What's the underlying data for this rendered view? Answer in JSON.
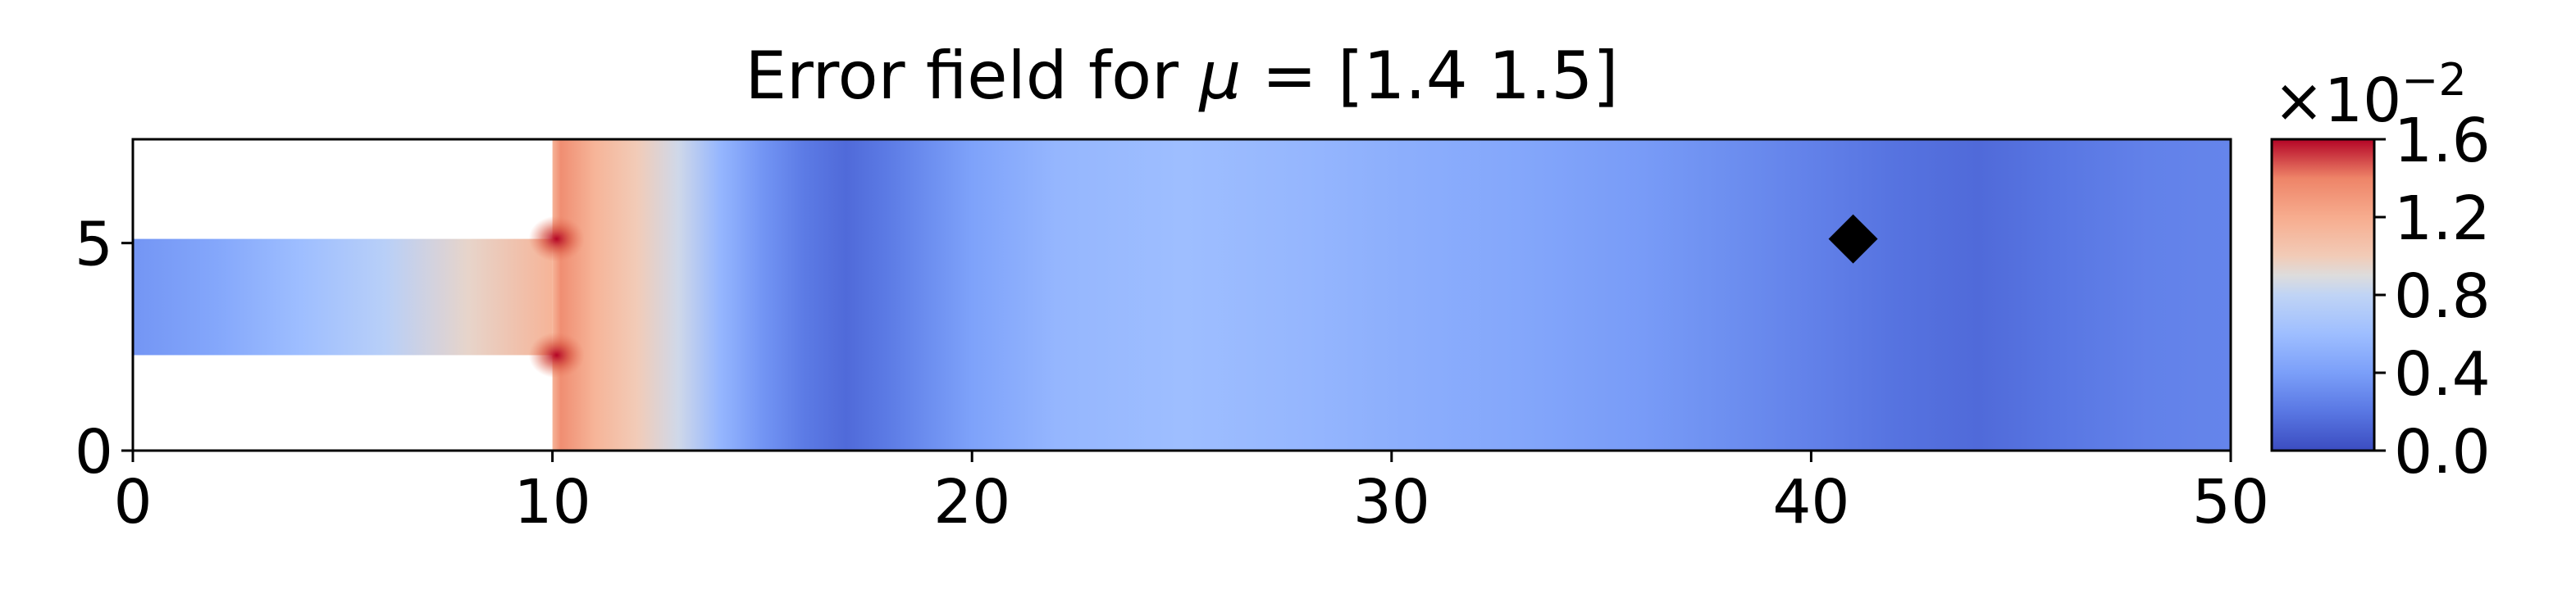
{
  "chart_data": {
    "type": "heatmap",
    "title_prefix": "Error field for ",
    "title_symbol": "μ",
    "title_suffix": " = [1.4 1.5]",
    "xlim": [
      0,
      50
    ],
    "ylim": [
      0,
      7.5
    ],
    "x_ticks": [
      "0",
      "10",
      "20",
      "30",
      "40",
      "50"
    ],
    "y_ticks": [
      "0",
      "5"
    ],
    "domain": {
      "inlet_channel": {
        "x": [
          0,
          10
        ],
        "y": [
          2.3,
          5.1
        ]
      },
      "main_channel": {
        "x": [
          10,
          50
        ],
        "y": [
          0,
          7.5
        ]
      }
    },
    "marker": {
      "shape": "diamond",
      "x": 41,
      "y": 5.1,
      "color": "#000000"
    },
    "colorbar": {
      "colormap": "coolwarm",
      "range": [
        0.0,
        1.6
      ],
      "ticks": [
        "0.0",
        "0.4",
        "0.8",
        "1.2",
        "1.6"
      ],
      "scale_base": "×10",
      "scale_exponent": "−2"
    },
    "field_profile": {
      "x": [
        0,
        2,
        4,
        6,
        8,
        10,
        10.2,
        11,
        12,
        13,
        14,
        15,
        16,
        17,
        18,
        19,
        20,
        22,
        25,
        28,
        30,
        33,
        36,
        38,
        40,
        42,
        44,
        46,
        48,
        50
      ],
      "value": [
        0.35,
        0.45,
        0.6,
        0.75,
        0.95,
        1.15,
        1.35,
        1.15,
        1.0,
        0.85,
        0.55,
        0.35,
        0.22,
        0.14,
        0.22,
        0.32,
        0.42,
        0.55,
        0.6,
        0.55,
        0.5,
        0.45,
        0.38,
        0.32,
        0.25,
        0.18,
        0.14,
        0.2,
        0.25,
        0.27
      ]
    },
    "hotspots": [
      {
        "x": 10.1,
        "y": 5.1,
        "value": 1.6
      },
      {
        "x": 10.1,
        "y": 2.3,
        "value": 1.35
      }
    ]
  }
}
